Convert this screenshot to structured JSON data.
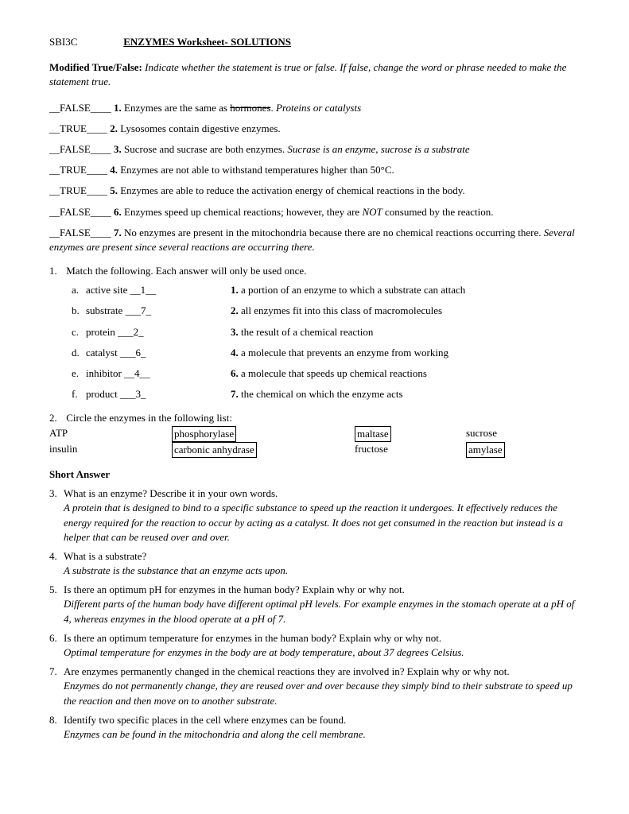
{
  "header": {
    "course": "SBI3C",
    "title": "ENZYMES Worksheet- SOLUTIONS"
  },
  "intro": {
    "label": "Modified True/False:",
    "text": "Indicate whether the statement is true or false.  If false, change the word or phrase needed to make the statement true."
  },
  "tf": [
    {
      "ans": "__FALSE____",
      "num": "1.",
      "pre": "Enzymes are the same as ",
      "strike": "hormones",
      "post": ".  ",
      "corr": "Proteins or catalysts"
    },
    {
      "ans": "__TRUE____",
      "num": "2.",
      "pre": "Lysosomes contain digestive enzymes.",
      "strike": "",
      "post": "",
      "corr": ""
    },
    {
      "ans": "__FALSE____",
      "num": "3.",
      "pre": "Sucrose and sucrase are both enzymes. ",
      "strike": "",
      "post": "",
      "corr": "Sucrase is an enzyme, sucrose is a substrate"
    },
    {
      "ans": "__TRUE____",
      "num": "4.",
      "pre": "Enzymes are not able to withstand temperatures higher than 50°C.",
      "strike": "",
      "post": "",
      "corr": ""
    },
    {
      "ans": "__TRUE____",
      "num": "5.",
      "pre": "Enzymes are able to reduce the activation energy of chemical reactions in the body.",
      "strike": "",
      "post": "",
      "corr": ""
    }
  ],
  "tf6": {
    "ans": "__FALSE____",
    "num": "6.",
    "pre1": "Enzymes speed up chemical reactions; however, they are ",
    "em": "NOT",
    "pre2": " consumed by the reaction."
  },
  "tf7": {
    "ans": "__FALSE____",
    "num": "7.",
    "text": "No enzymes are present in the mitochondria because there are no chemical reactions occurring there.  ",
    "corr": "Several enzymes are present since several reactions are occurring there."
  },
  "match": {
    "intro_num": "1.",
    "intro": "Match the following.   Each answer will only be used once.",
    "rows": [
      {
        "l": "a.",
        "term": "active site __1__",
        "rnum": "1.",
        "def": "a portion of an enzyme to which a substrate can attach"
      },
      {
        "l": "b.",
        "term": "substrate ___7_",
        "rnum": "2.",
        "def": "all enzymes fit into this class of macromolecules"
      },
      {
        "l": "c.",
        "term": "protein  ___2_",
        "rnum": "3.",
        "def": "the result of a chemical reaction"
      },
      {
        "l": "d.",
        "term": "catalyst ___6_",
        "rnum": "4.",
        "def": "a molecule that prevents an enzyme from working"
      },
      {
        "l": "e.",
        "term": "inhibitor __4__",
        "rnum": "6.",
        "def": "a molecule that speeds up chemical reactions"
      },
      {
        "l": "f.",
        "term": "product ___3_",
        "rnum": "7.",
        "def": "the chemical on which the enzyme acts"
      }
    ]
  },
  "enzyme_list": {
    "num": "2.",
    "intro": "Circle the enzymes in the following list:",
    "row1": {
      "c1": "ATP",
      "c2": "phosphorylase",
      "c3": "maltase",
      "c4": "sucrose"
    },
    "row2": {
      "c1": "insulin",
      "c2": "carbonic anhydrase",
      "c3": "fructose",
      "c4": "amylase"
    },
    "boxed": {
      "r1c2": true,
      "r1c3": true,
      "r2c2": true,
      "r2c4": true
    }
  },
  "short_answer": {
    "heading": "Short Answer",
    "items": [
      {
        "num": "3.",
        "q": "What is an enzyme?  Describe it in your own words.",
        "a": "A protein that is designed to bind to a specific substance to speed up the reaction it undergoes.  It effectively reduces the energy required for the reaction to occur by acting as a catalyst.  It does not get consumed in the reaction but instead is a helper that can be reused over and over."
      },
      {
        "num": "4.",
        "q": "What is a substrate?",
        "a": "A substrate is the substance that an enzyme acts upon."
      },
      {
        "num": "5.",
        "q": "Is there an optimum pH for enzymes in the human body?  Explain why or why not.",
        "a": "Different parts of the human body have different optimal pH levels.  For example enzymes in the stomach operate at a pH of 4, whereas enzymes in the blood operate at a pH of 7."
      },
      {
        "num": "6.",
        "q": "Is there an optimum temperature for enzymes in the human body?  Explain why or why not.",
        "a": "Optimal temperature for enzymes in the body are at body temperature, about 37 degrees Celsius."
      },
      {
        "num": "7.",
        "q": "Are enzymes permanently changed in the chemical reactions they are involved in?  Explain why or why not.",
        "a": "Enzymes do not permanently change, they are reused over and over because they simply bind to their substrate to speed up the reaction and then move on to another substrate."
      },
      {
        "num": "8.",
        "q": "Identify two specific places in the cell where enzymes can be found.",
        "a": "Enzymes can be found in the mitochondria and along the cell membrane."
      }
    ]
  }
}
